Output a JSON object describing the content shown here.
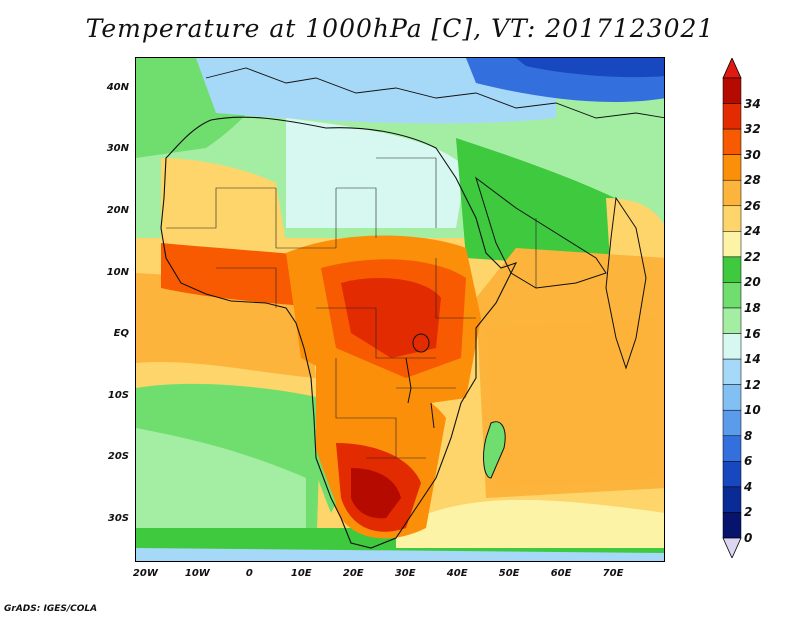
{
  "title": "Temperature at 1000hPa [C], VT: 2017123021",
  "credit": "GrADS: IGES/COLA",
  "map": {
    "lat_labels": [
      "40N",
      "30N",
      "20N",
      "10N",
      "EQ",
      "10S",
      "20S",
      "30S"
    ],
    "lat_values": [
      40,
      30,
      20,
      10,
      0,
      -10,
      -20,
      -30
    ],
    "lon_labels": [
      "20W",
      "10W",
      "0",
      "10E",
      "20E",
      "30E",
      "40E",
      "50E",
      "60E",
      "70E"
    ],
    "lon_values": [
      -20,
      -10,
      0,
      10,
      20,
      30,
      40,
      50,
      60,
      70
    ],
    "extent": {
      "lon_min": -22,
      "lon_max": 80,
      "lat_min": -37,
      "lat_max": 45
    }
  },
  "colorbar": {
    "labels": [
      "34",
      "32",
      "30",
      "28",
      "26",
      "24",
      "22",
      "20",
      "18",
      "16",
      "14",
      "12",
      "10",
      "8",
      "6",
      "4",
      "2",
      "0"
    ],
    "colors": [
      "#b50a00",
      "#e22b00",
      "#f75a00",
      "#fb8f0a",
      "#fcb43c",
      "#fdd56a",
      "#fdf3a6",
      "#3ec93e",
      "#6fde6f",
      "#a4eea4",
      "#d6f8f0",
      "#a6d8f8",
      "#82bff3",
      "#5a9ceb",
      "#3470dd",
      "#1748c0",
      "#0a2a95",
      "#06146e"
    ],
    "top_arrow_color": "#e01a10",
    "bottom_arrow_color": "#dcd6f2"
  }
}
